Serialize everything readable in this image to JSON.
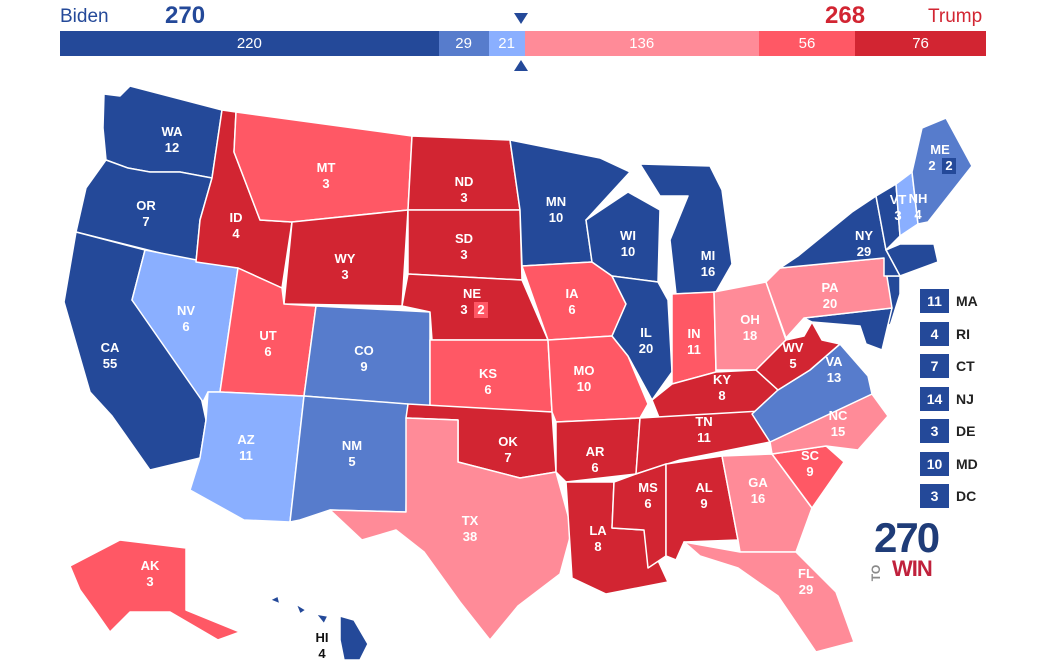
{
  "header": {
    "dem_name": "Biden",
    "dem_total": "270",
    "rep_name": "Trump",
    "rep_total": "268"
  },
  "colors": {
    "safe_d": "#244999",
    "likely_d": "#577ccc",
    "lean_d": "#8aafff",
    "lean_r": "#ff8b98",
    "likely_r": "#ff5865",
    "safe_r": "#d22532",
    "total_d": "#244999",
    "total_r": "#d22532"
  },
  "bar_segments": [
    {
      "label": "220",
      "value": 220,
      "rating": "safe_d"
    },
    {
      "label": "29",
      "value": 29,
      "rating": "likely_d"
    },
    {
      "label": "21",
      "value": 21,
      "rating": "lean_d"
    },
    {
      "label": "136",
      "value": 136,
      "rating": "lean_r"
    },
    {
      "label": "56",
      "value": 56,
      "rating": "likely_r"
    },
    {
      "label": "76",
      "value": 76,
      "rating": "safe_r"
    }
  ],
  "states": {
    "WA": {
      "abbr": "WA",
      "ev": "12",
      "rating": "safe_d"
    },
    "OR": {
      "abbr": "OR",
      "ev": "7",
      "rating": "safe_d"
    },
    "CA": {
      "abbr": "CA",
      "ev": "55",
      "rating": "safe_d"
    },
    "NV": {
      "abbr": "NV",
      "ev": "6",
      "rating": "lean_d"
    },
    "ID": {
      "abbr": "ID",
      "ev": "4",
      "rating": "safe_r"
    },
    "MT": {
      "abbr": "MT",
      "ev": "3",
      "rating": "likely_r"
    },
    "WY": {
      "abbr": "WY",
      "ev": "3",
      "rating": "safe_r"
    },
    "UT": {
      "abbr": "UT",
      "ev": "6",
      "rating": "likely_r"
    },
    "AZ": {
      "abbr": "AZ",
      "ev": "11",
      "rating": "lean_d"
    },
    "CO": {
      "abbr": "CO",
      "ev": "9",
      "rating": "likely_d"
    },
    "NM": {
      "abbr": "NM",
      "ev": "5",
      "rating": "likely_d"
    },
    "ND": {
      "abbr": "ND",
      "ev": "3",
      "rating": "safe_r"
    },
    "SD": {
      "abbr": "SD",
      "ev": "3",
      "rating": "safe_r"
    },
    "NE": {
      "abbr": "NE",
      "ev": "3",
      "ev2": "2",
      "rating": "safe_r",
      "rating2": "likely_r"
    },
    "KS": {
      "abbr": "KS",
      "ev": "6",
      "rating": "likely_r"
    },
    "OK": {
      "abbr": "OK",
      "ev": "7",
      "rating": "safe_r"
    },
    "TX": {
      "abbr": "TX",
      "ev": "38",
      "rating": "lean_r"
    },
    "MN": {
      "abbr": "MN",
      "ev": "10",
      "rating": "safe_d"
    },
    "IA": {
      "abbr": "IA",
      "ev": "6",
      "rating": "likely_r"
    },
    "MO": {
      "abbr": "MO",
      "ev": "10",
      "rating": "likely_r"
    },
    "AR": {
      "abbr": "AR",
      "ev": "6",
      "rating": "safe_r"
    },
    "LA": {
      "abbr": "LA",
      "ev": "8",
      "rating": "safe_r"
    },
    "WI": {
      "abbr": "WI",
      "ev": "10",
      "rating": "safe_d"
    },
    "IL": {
      "abbr": "IL",
      "ev": "20",
      "rating": "safe_d"
    },
    "MI": {
      "abbr": "MI",
      "ev": "16",
      "rating": "safe_d"
    },
    "IN": {
      "abbr": "IN",
      "ev": "11",
      "rating": "likely_r"
    },
    "OH": {
      "abbr": "OH",
      "ev": "18",
      "rating": "lean_r"
    },
    "KY": {
      "abbr": "KY",
      "ev": "8",
      "rating": "safe_r"
    },
    "TN": {
      "abbr": "TN",
      "ev": "11",
      "rating": "safe_r"
    },
    "MS": {
      "abbr": "MS",
      "ev": "6",
      "rating": "safe_r"
    },
    "AL": {
      "abbr": "AL",
      "ev": "9",
      "rating": "safe_r"
    },
    "GA": {
      "abbr": "GA",
      "ev": "16",
      "rating": "lean_r"
    },
    "FL": {
      "abbr": "FL",
      "ev": "29",
      "rating": "lean_r"
    },
    "SC": {
      "abbr": "SC",
      "ev": "9",
      "rating": "likely_r"
    },
    "NC": {
      "abbr": "NC",
      "ev": "15",
      "rating": "lean_r"
    },
    "VA": {
      "abbr": "VA",
      "ev": "13",
      "rating": "likely_d"
    },
    "WV": {
      "abbr": "WV",
      "ev": "5",
      "rating": "safe_r"
    },
    "PA": {
      "abbr": "PA",
      "ev": "20",
      "rating": "lean_r"
    },
    "NY": {
      "abbr": "NY",
      "ev": "29",
      "rating": "safe_d"
    },
    "VT": {
      "abbr": "VT",
      "ev": "3",
      "rating": "safe_d"
    },
    "NH": {
      "abbr": "NH",
      "ev": "4",
      "rating": "lean_d"
    },
    "ME": {
      "abbr": "ME",
      "ev": "2",
      "ev2": "2",
      "rating": "likely_d",
      "rating2": "safe_d"
    },
    "AK": {
      "abbr": "AK",
      "ev": "3",
      "rating": "likely_r"
    },
    "HI": {
      "abbr": "HI",
      "ev": "4",
      "rating": "safe_d"
    }
  },
  "small_states": [
    {
      "abbr": "MA",
      "ev": "11",
      "rating": "safe_d"
    },
    {
      "abbr": "RI",
      "ev": "4",
      "rating": "safe_d"
    },
    {
      "abbr": "CT",
      "ev": "7",
      "rating": "safe_d"
    },
    {
      "abbr": "NJ",
      "ev": "14",
      "rating": "safe_d"
    },
    {
      "abbr": "DE",
      "ev": "3",
      "rating": "safe_d"
    },
    {
      "abbr": "MD",
      "ev": "10",
      "rating": "safe_d"
    },
    {
      "abbr": "DC",
      "ev": "3",
      "rating": "safe_d"
    }
  ],
  "logo": {
    "number": "270",
    "to": "TO",
    "win": "WIN"
  }
}
